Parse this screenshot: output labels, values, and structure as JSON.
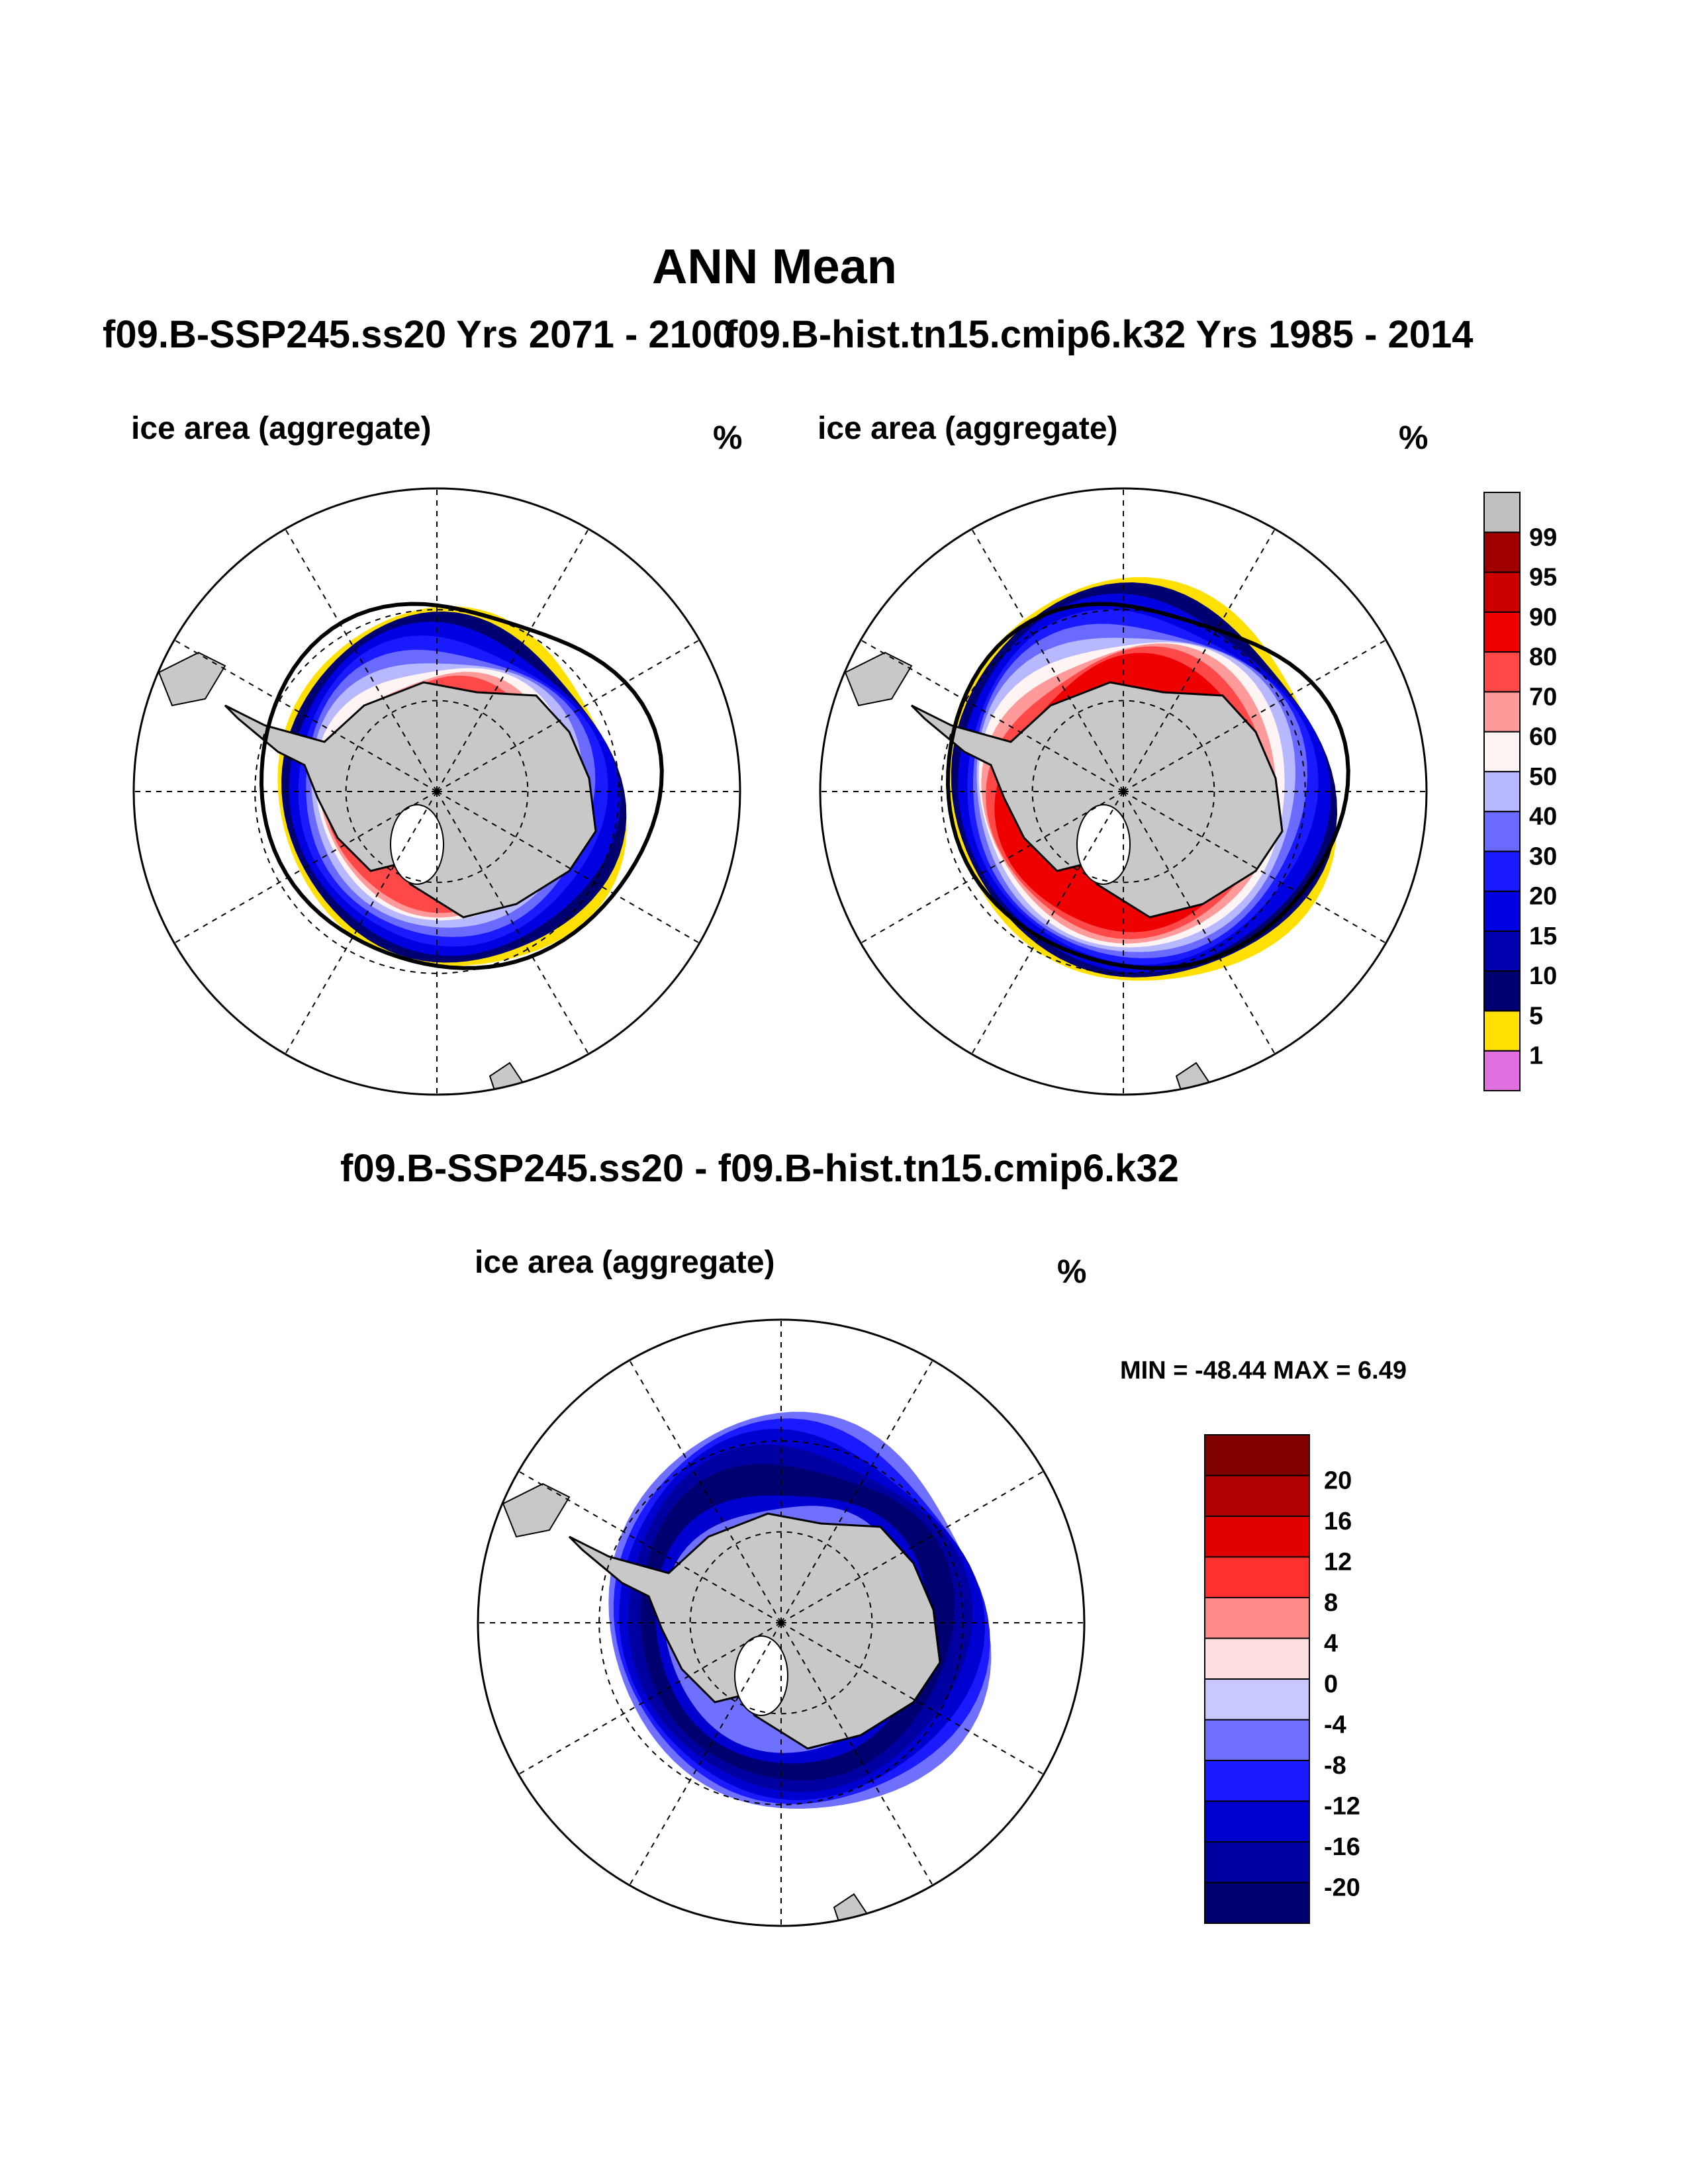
{
  "figure": {
    "main_title": "ANN Mean",
    "diff_title": "f09.B-SSP245.ss20 - f09.B-hist.tn15.cmip6.k32",
    "min_max": "MIN = -48.44 MAX =   6.49"
  },
  "chart_data": [
    {
      "type": "heatmap",
      "projection": "south polar stereographic",
      "title": "f09.B-SSP245.ss20  Yrs 2071 - 2100",
      "field": "ice area  (aggregate)",
      "units": "%",
      "grid": true,
      "colorbar": "shared",
      "colorbar_levels": [
        1,
        5,
        10,
        15,
        20,
        30,
        40,
        50,
        60,
        70,
        80,
        90,
        95,
        99
      ],
      "colorbar_colors": [
        "#e070e0",
        "#ffe000",
        "#000070",
        "#0000b0",
        "#0000e0",
        "#1a1aff",
        "#6a6aff",
        "#b8b8ff",
        "#fff4f4",
        "#ff9a9a",
        "#ff4848",
        "#ee0000",
        "#cc0000",
        "#a00000",
        "#c0c0c0"
      ]
    },
    {
      "type": "heatmap",
      "projection": "south polar stereographic",
      "title": "f09.B-hist.tn15.cmip6.k32  Yrs 1985 - 2014",
      "field": "ice area  (aggregate)",
      "units": "%",
      "grid": true,
      "colorbar": "right",
      "colorbar_levels": [
        1,
        5,
        10,
        15,
        20,
        30,
        40,
        50,
        60,
        70,
        80,
        90,
        95,
        99
      ],
      "colorbar_colors": [
        "#e070e0",
        "#ffe000",
        "#000070",
        "#0000b0",
        "#0000e0",
        "#1a1aff",
        "#6a6aff",
        "#b8b8ff",
        "#fff4f4",
        "#ff9a9a",
        "#ff4848",
        "#ee0000",
        "#cc0000",
        "#a00000",
        "#c0c0c0"
      ]
    },
    {
      "type": "heatmap",
      "projection": "south polar stereographic",
      "title": "f09.B-SSP245.ss20 - f09.B-hist.tn15.cmip6.k32",
      "field": "ice area  (aggregate)",
      "units": "%",
      "grid": true,
      "min": -48.44,
      "max": 6.49,
      "colorbar": "right",
      "colorbar_levels": [
        -20,
        -16,
        -12,
        -8,
        -4,
        0,
        4,
        8,
        12,
        16,
        20
      ],
      "colorbar_colors": [
        "#000070",
        "#0000a0",
        "#0000d0",
        "#1a1aff",
        "#7070ff",
        "#c8c8ff",
        "#ffe0e0",
        "#ff8a8a",
        "#ff3030",
        "#e00000",
        "#b00000",
        "#800000"
      ]
    }
  ]
}
